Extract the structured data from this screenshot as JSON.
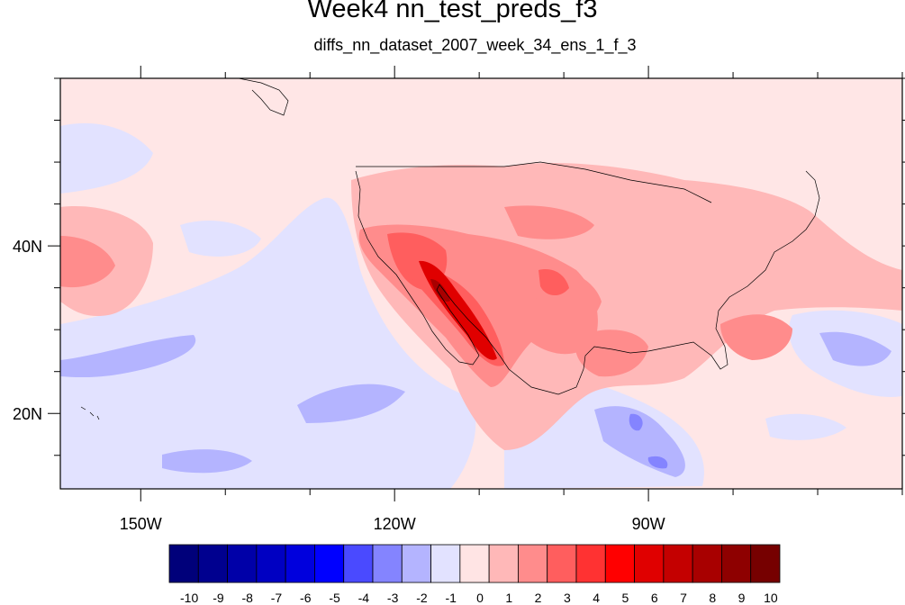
{
  "title": "Week4 nn_test_preds_f3",
  "subtitle": "diffs_nn_dataset_2007_week_34_ens_1_f_3",
  "axes": {
    "x_ticks": [
      {
        "label": "150W",
        "lon": -150
      },
      {
        "label": "120W",
        "lon": -120
      },
      {
        "label": "90W",
        "lon": -90
      }
    ],
    "y_ticks": [
      {
        "label": "40N",
        "lat": 40
      },
      {
        "label": "20N",
        "lat": 20
      }
    ],
    "lon_range": [
      -159.5,
      -60
    ],
    "lat_range": [
      11,
      60
    ]
  },
  "colorbar": {
    "levels": [
      "-10",
      "-9",
      "-8",
      "-7",
      "-6",
      "-5",
      "-4",
      "-3",
      "-2",
      "-1",
      "0",
      "1",
      "2",
      "3",
      "4",
      "5",
      "6",
      "7",
      "8",
      "9",
      "10"
    ],
    "colors": [
      "#00007a",
      "#00008f",
      "#0000a8",
      "#0000c2",
      "#0000dd",
      "#0000ff",
      "#4a4aff",
      "#8484ff",
      "#b4b4ff",
      "#e2e2ff",
      "#ffe4e4",
      "#ffb8b8",
      "#ff8c8c",
      "#ff5e5e",
      "#ff3232",
      "#ff0000",
      "#e00000",
      "#c40000",
      "#a80000",
      "#8e0000",
      "#760000"
    ]
  },
  "palette": {
    "background": "#ffe6e6",
    "light_blue": "#e2e2ff",
    "mid_blue": "#b4b4ff",
    "blue": "#8484ff",
    "pink": "#ffb8b8",
    "salmon": "#ff8c8c",
    "red": "#ff5e5e",
    "dark_red": "#e00000",
    "deep_red": "#a80000"
  }
}
